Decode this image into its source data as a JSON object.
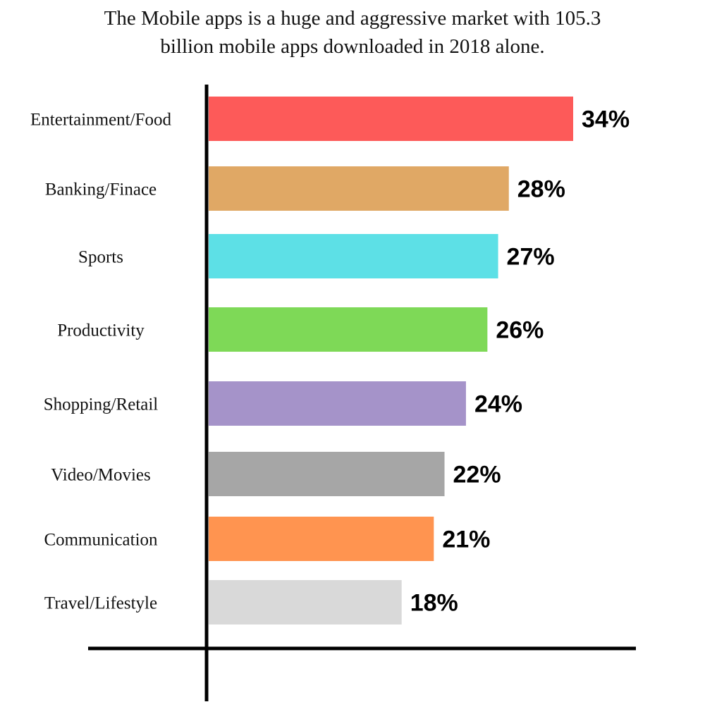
{
  "chart_data": {
    "type": "bar",
    "orientation": "horizontal",
    "title_lines": [
      "The Mobile apps is a huge and aggressive market with 105.3",
      "billion mobile apps downloaded in 2018 alone."
    ],
    "categories": [
      "Entertainment/Food",
      "Banking/Finace",
      "Sports",
      "Productivity",
      "Shopping/Retail",
      "Video/Movies",
      "Communication",
      "Travel/Lifestyle"
    ],
    "values": [
      34,
      28,
      27,
      26,
      24,
      22,
      21,
      18
    ],
    "value_labels": [
      "34%",
      "28%",
      "27%",
      "26%",
      "24%",
      "22%",
      "21%",
      "18%"
    ],
    "colors": [
      "#fd5a59",
      "#e0a865",
      "#5de0e6",
      "#7ed957",
      "#a593c9",
      "#a6a6a6",
      "#ff9450",
      "#d9d9d9"
    ],
    "xlim": [
      0,
      34
    ],
    "grid": false,
    "legend": "none"
  }
}
